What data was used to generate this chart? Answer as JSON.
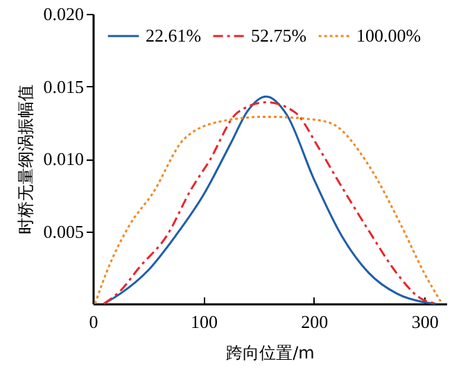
{
  "chart_data": {
    "type": "line",
    "xlabel": "跨向位置/m",
    "ylabel": "时桥无量纲涡振幅值",
    "xlim": [
      0,
      320
    ],
    "ylim": [
      0,
      0.02
    ],
    "xticks": [
      0,
      100,
      200,
      300
    ],
    "yticks": [
      0.005,
      {
        "value": 0.01,
        "label": "0.010"
      },
      0.015,
      {
        "value": 0.02,
        "label": "0.020"
      }
    ],
    "grid": false,
    "legend": "top",
    "marker": "none",
    "series": [
      {
        "name": "22.61%",
        "color": "#1f5fa8",
        "line_style": "solid",
        "x": [
          10,
          25,
          50,
          75,
          100,
          125,
          140,
          157,
          175,
          200,
          225,
          250,
          275,
          300,
          310
        ],
        "values": [
          0,
          0.0007,
          0.0023,
          0.0047,
          0.0075,
          0.0111,
          0.0133,
          0.0143,
          0.0131,
          0.0086,
          0.0047,
          0.0021,
          0.0007,
          0.0001,
          0
        ]
      },
      {
        "name": "52.75%",
        "color": "#e8262a",
        "line_style": "dashed",
        "x": [
          10,
          25,
          42,
          67,
          89,
          105,
          131,
          157,
          183,
          204,
          221,
          250,
          275,
          296,
          312
        ],
        "values": [
          0,
          0.0009,
          0.0025,
          0.0047,
          0.0079,
          0.0098,
          0.0132,
          0.0139,
          0.0132,
          0.0108,
          0.0086,
          0.005,
          0.0021,
          0.0004,
          0
        ]
      },
      {
        "name": "100.00%",
        "color": "#f08a24",
        "line_style": "dotted",
        "x": [
          2,
          12,
          33,
          54,
          83,
          117,
          157,
          200,
          217,
          250,
          279,
          300,
          316
        ],
        "values": [
          0,
          0.0021,
          0.0054,
          0.0076,
          0.0114,
          0.0126,
          0.0129,
          0.0127,
          0.0124,
          0.0095,
          0.0054,
          0.0021,
          0
        ]
      }
    ]
  }
}
